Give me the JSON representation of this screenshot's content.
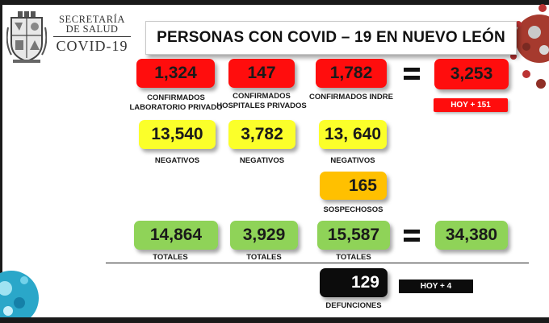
{
  "logo": {
    "line1": "SECRETARÍA",
    "line2": "DE SALUD",
    "line3": "COVID-19"
  },
  "title": "PERSONAS CON COVID – 19 EN NUEVO LEÓN",
  "colors": {
    "red": "#ff0d0d",
    "yellow": "#fbff2a",
    "orange": "#ffc000",
    "green": "#8fd358",
    "black": "#0c0c0c"
  },
  "confirmados": {
    "laboratorio_privado": {
      "value": "1,324",
      "label_line1": "CONFIRMADOS",
      "label_line2": "LABORATORIO PRIVADO"
    },
    "hospitales_privados": {
      "value": "147",
      "label_line1": "CONFIRMADOS",
      "label_line2": "HOSPITALES PRIVADOS"
    },
    "indre": {
      "value": "1,782",
      "label": "CONFIRMADOS INDRE"
    },
    "total": "3,253",
    "hoy": "HOY + 151"
  },
  "negativos": {
    "col1": {
      "value": "13,540",
      "label": "NEGATIVOS"
    },
    "col2": {
      "value": "3,782",
      "label": "NEGATIVOS"
    },
    "col3": {
      "value": "13, 640",
      "label": "NEGATIVOS"
    }
  },
  "sospechosos": {
    "value": "165",
    "label": "SOSPECHOSOS"
  },
  "totales": {
    "col1": {
      "value": "14,864",
      "label": "TOTALES"
    },
    "col2": {
      "value": "3,929",
      "label": "TOTALES"
    },
    "col3": {
      "value": "15,587",
      "label": "TOTALES"
    },
    "grand_total": "34,380"
  },
  "defunciones": {
    "value": "129",
    "label": "DEFUNCIONES",
    "hoy": "HOY + 4"
  }
}
